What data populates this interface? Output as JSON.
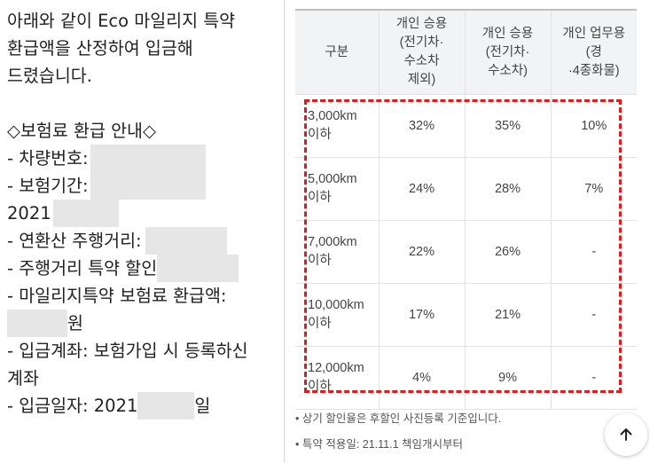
{
  "left_text": {
    "line1": "아래와 같이 Eco 마일리지 특약",
    "line2": "환급액을 산정하여 입금해",
    "line3": "드렸습니다.",
    "heading": "◇보험료 환급 안내◇",
    "car_number": "- 차량번호:",
    "period": "- 보험기간:",
    "period_year": "2021",
    "annual_distance": "- 연환산 주행거리:",
    "discount": "- 주행거리 특약 할인",
    "refund_label": "- 마일리지특약 보험료 환급액:",
    "refund_unit": "원",
    "account_line1": "- 입금계좌: 보험가입 시 등록하신",
    "account_line2": "계좌",
    "date_prefix": "- 입금일자: 2021",
    "date_suffix": "일"
  },
  "table": {
    "headers": [
      {
        "lines": [
          "구분"
        ]
      },
      {
        "lines": [
          "개인 승용",
          "(전기차·",
          "수소차",
          "제외)"
        ]
      },
      {
        "lines": [
          "개인 승용",
          "(전기차·",
          "수소차)"
        ]
      },
      {
        "lines": [
          "개인 업무용",
          "(경",
          "·4종화물)"
        ]
      }
    ],
    "rows": [
      {
        "distance": "3,000km",
        "sub": "이하",
        "v1": "32%",
        "v2": "35%",
        "v3": "10%"
      },
      {
        "distance": "5,000km",
        "sub": "이하",
        "v1": "24%",
        "v2": "28%",
        "v3": "7%"
      },
      {
        "distance": "7,000km",
        "sub": "이하",
        "v1": "22%",
        "v2": "26%",
        "v3": "-"
      },
      {
        "distance": "10,000km",
        "sub": "이하",
        "v1": "17%",
        "v2": "21%",
        "v3": "-"
      },
      {
        "distance": "12,000km",
        "sub": "이하",
        "v1": "4%",
        "v2": "9%",
        "v3": "-"
      }
    ]
  },
  "notes": {
    "note1": "상기 할인율은 후할인 사진등록 기준입니다.",
    "note2": "특약 적용일: 21.11.1 책임개시부터"
  },
  "colors": {
    "highlight": "#e01b1b",
    "header_bg": "#f2f3f5",
    "redaction": "#e6e6e6"
  },
  "icons": {
    "scroll_top": "arrow-up-icon"
  }
}
